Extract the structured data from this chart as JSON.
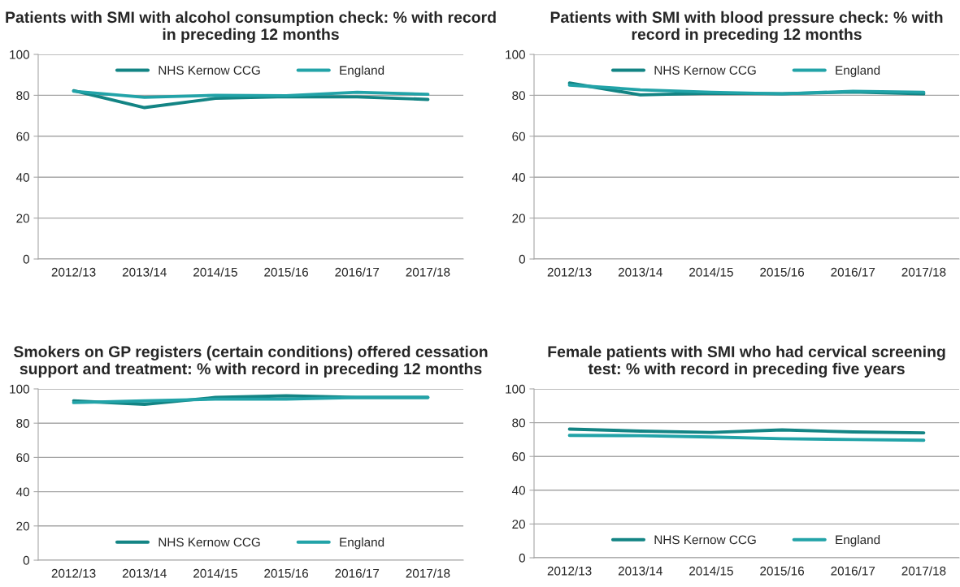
{
  "chart_data": [
    {
      "type": "line",
      "title": "Patients with SMI with alcohol consumption check: % with record in preceding 12 months",
      "categories": [
        "2012/13",
        "2013/14",
        "2014/15",
        "2015/16",
        "2016/17",
        "2017/18"
      ],
      "ylim": [
        0,
        100
      ],
      "yticks": [
        0,
        20,
        40,
        60,
        80,
        100
      ],
      "grid": "y",
      "legend": "top",
      "series": [
        {
          "name": "NHS Kernow CCG",
          "color": "#138484",
          "values": [
            82.3,
            74,
            78.5,
            79.3,
            79.2,
            78
          ]
        },
        {
          "name": "England",
          "color": "#22a3a8",
          "values": [
            82,
            79,
            80,
            79.8,
            81.5,
            80.5
          ]
        }
      ]
    },
    {
      "type": "line",
      "title": "Patients with SMI with blood pressure check: % with record in preceding 12 months",
      "categories": [
        "2012/13",
        "2013/14",
        "2014/15",
        "2015/16",
        "2016/17",
        "2017/18"
      ],
      "ylim": [
        0,
        100
      ],
      "yticks": [
        0,
        20,
        40,
        60,
        80,
        100
      ],
      "grid": "y",
      "legend": "top",
      "series": [
        {
          "name": "NHS Kernow CCG",
          "color": "#138484",
          "values": [
            86,
            80.2,
            81,
            80.8,
            81.6,
            80.7
          ]
        },
        {
          "name": "England",
          "color": "#22a3a8",
          "values": [
            85,
            82.7,
            81.5,
            80.7,
            82,
            81.5
          ]
        }
      ]
    },
    {
      "type": "line",
      "title": "Smokers on GP registers (certain conditions) offered cessation support and treatment: % with record in preceding 12 months",
      "categories": [
        "2012/13",
        "2013/14",
        "2014/15",
        "2015/16",
        "2016/17",
        "2017/18"
      ],
      "ylim": [
        0,
        100
      ],
      "yticks": [
        0,
        20,
        40,
        60,
        80,
        100
      ],
      "grid": "y",
      "legend": "bottom",
      "series": [
        {
          "name": "NHS Kernow CCG",
          "color": "#138484",
          "values": [
            93,
            91,
            95,
            96,
            95,
            95
          ]
        },
        {
          "name": "England",
          "color": "#22a3a8",
          "values": [
            92,
            93,
            94,
            94,
            95,
            95
          ]
        }
      ]
    },
    {
      "type": "line",
      "title": "Female patients with SMI who had cervical screening test: % with record in preceding five years",
      "categories": [
        "2012/13",
        "2013/14",
        "2014/15",
        "2015/16",
        "2016/17",
        "2017/18"
      ],
      "ylim": [
        0,
        100
      ],
      "yticks": [
        0,
        20,
        40,
        60,
        80,
        100
      ],
      "grid": "y",
      "legend": "bottom",
      "series": [
        {
          "name": "NHS Kernow CCG",
          "color": "#138484",
          "values": [
            76.2,
            75,
            74.2,
            75.7,
            74.5,
            74
          ]
        },
        {
          "name": "England",
          "color": "#22a3a8",
          "values": [
            72.5,
            72.3,
            71.5,
            70.5,
            70,
            69.6
          ]
        }
      ]
    }
  ]
}
